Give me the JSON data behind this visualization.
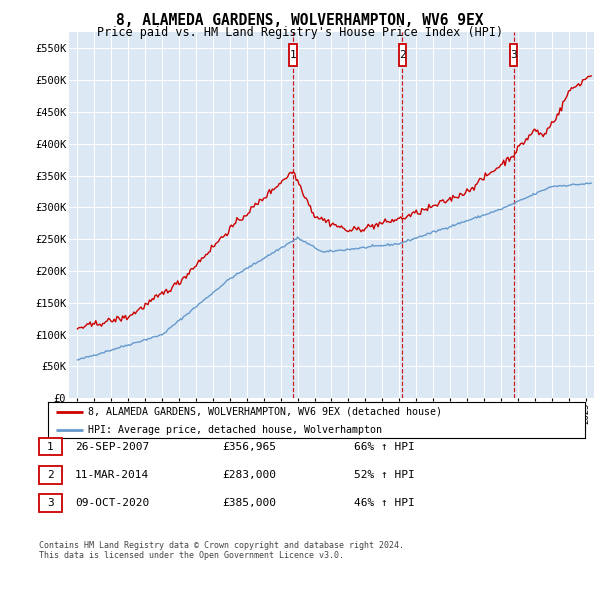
{
  "title": "8, ALAMEDA GARDENS, WOLVERHAMPTON, WV6 9EX",
  "subtitle": "Price paid vs. HM Land Registry's House Price Index (HPI)",
  "legend_line1": "8, ALAMEDA GARDENS, WOLVERHAMPTON, WV6 9EX (detached house)",
  "legend_line2": "HPI: Average price, detached house, Wolverhampton",
  "transactions": [
    {
      "num": 1,
      "date": "26-SEP-2007",
      "price": "£356,965",
      "hpi": "66% ↑ HPI",
      "x_year": 2007.73
    },
    {
      "num": 2,
      "date": "11-MAR-2014",
      "price": "£283,000",
      "hpi": "52% ↑ HPI",
      "x_year": 2014.19
    },
    {
      "num": 3,
      "date": "09-OCT-2020",
      "price": "£385,000",
      "hpi": "46% ↑ HPI",
      "x_year": 2020.77
    }
  ],
  "footnote1": "Contains HM Land Registry data © Crown copyright and database right 2024.",
  "footnote2": "This data is licensed under the Open Government Licence v3.0.",
  "red_color": "#cc0000",
  "blue_color": "#6699cc",
  "plot_bg": "#dce9f5",
  "grid_color": "#ffffff",
  "ylim": [
    0,
    575000
  ],
  "yticks": [
    0,
    50000,
    100000,
    150000,
    200000,
    250000,
    300000,
    350000,
    400000,
    450000,
    500000,
    550000
  ],
  "xlim_start": 1994.5,
  "xlim_end": 2025.5
}
